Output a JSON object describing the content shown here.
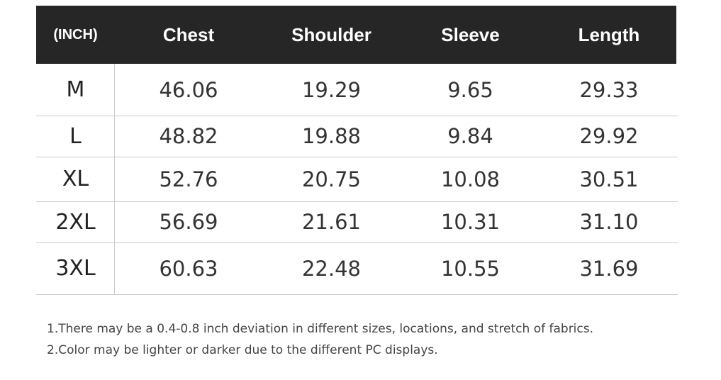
{
  "table": {
    "header": [
      "(INCH)",
      "Chest",
      "Shoulder",
      "Sleeve",
      "Length"
    ],
    "rows": [
      [
        "M",
        "46.06",
        "19.29",
        "9.65",
        "29.33"
      ],
      [
        "L",
        "48.82",
        "19.88",
        "9.84",
        "29.92"
      ],
      [
        "XL",
        "52.76",
        "20.75",
        "10.08",
        "30.51"
      ],
      [
        "2XL",
        "56.69",
        "21.61",
        "10.31",
        "31.10"
      ],
      [
        "3XL",
        "60.63",
        "22.48",
        "10.55",
        "31.69"
      ]
    ]
  },
  "notes": [
    "1.There may be a 0.4-0.8 inch deviation in different sizes, locations, and stretch of fabrics.",
    "2.Color may be lighter or darker due to the different PC displays."
  ]
}
